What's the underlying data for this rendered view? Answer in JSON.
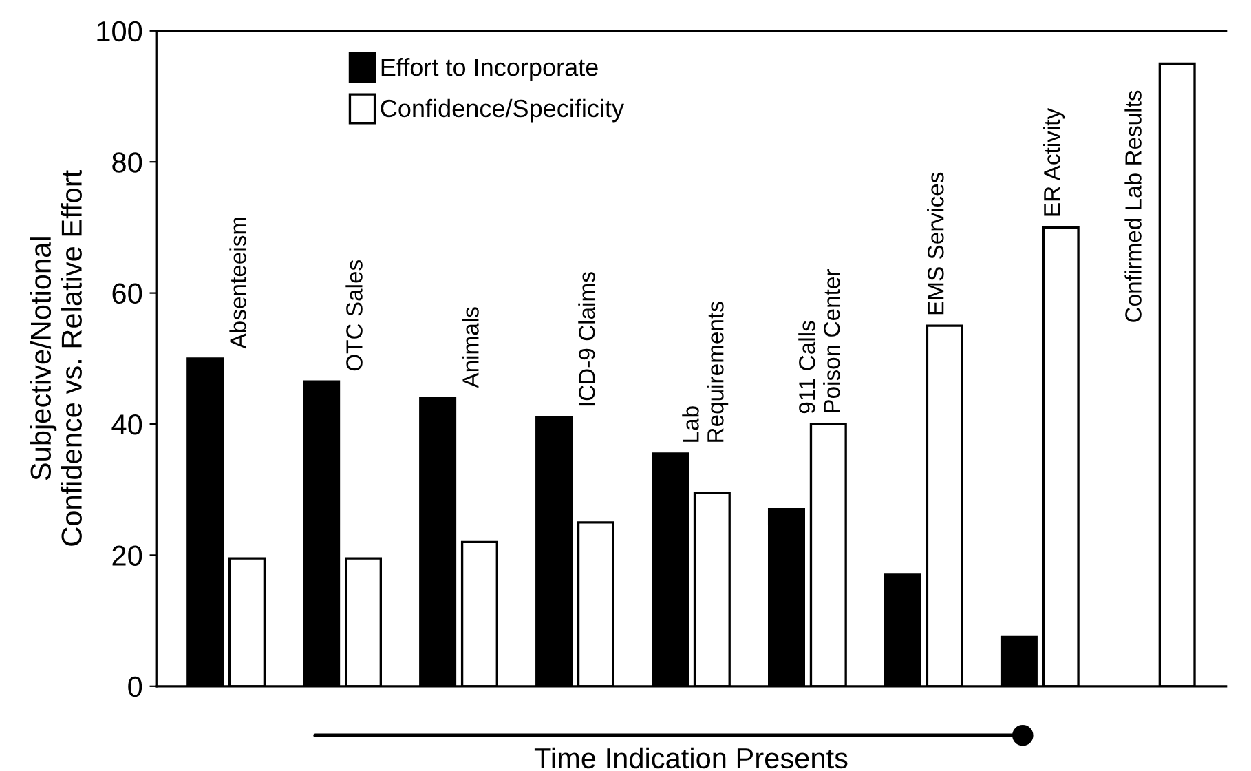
{
  "chart_data": {
    "type": "bar",
    "ylabel": "Subjective/Notional\nConfidence vs. Relative Effort",
    "xlabel": "Time Indication Presents",
    "categories": [
      "Absenteeism",
      "OTC Sales",
      "Animals",
      "ICD-9 Claims",
      "Lab\nRequirements",
      "911 Calls\nPoison Center",
      "EMS Services",
      "ER Activity",
      "Confirmed Lab Results"
    ],
    "series": [
      {
        "name": "Effort to Incorporate",
        "color": "#000000",
        "values": [
          50,
          46.5,
          44,
          41,
          35.5,
          27,
          17,
          7.5,
          null
        ]
      },
      {
        "name": "Confidence/Specificity",
        "color": "#ffffff",
        "values": [
          19.5,
          19.5,
          22,
          25,
          29.5,
          40,
          55,
          70,
          95
        ]
      }
    ],
    "ylim": [
      0,
      100
    ],
    "yticks": [
      0,
      20,
      40,
      60,
      80,
      100
    ],
    "grid": false,
    "legend": "top left"
  }
}
